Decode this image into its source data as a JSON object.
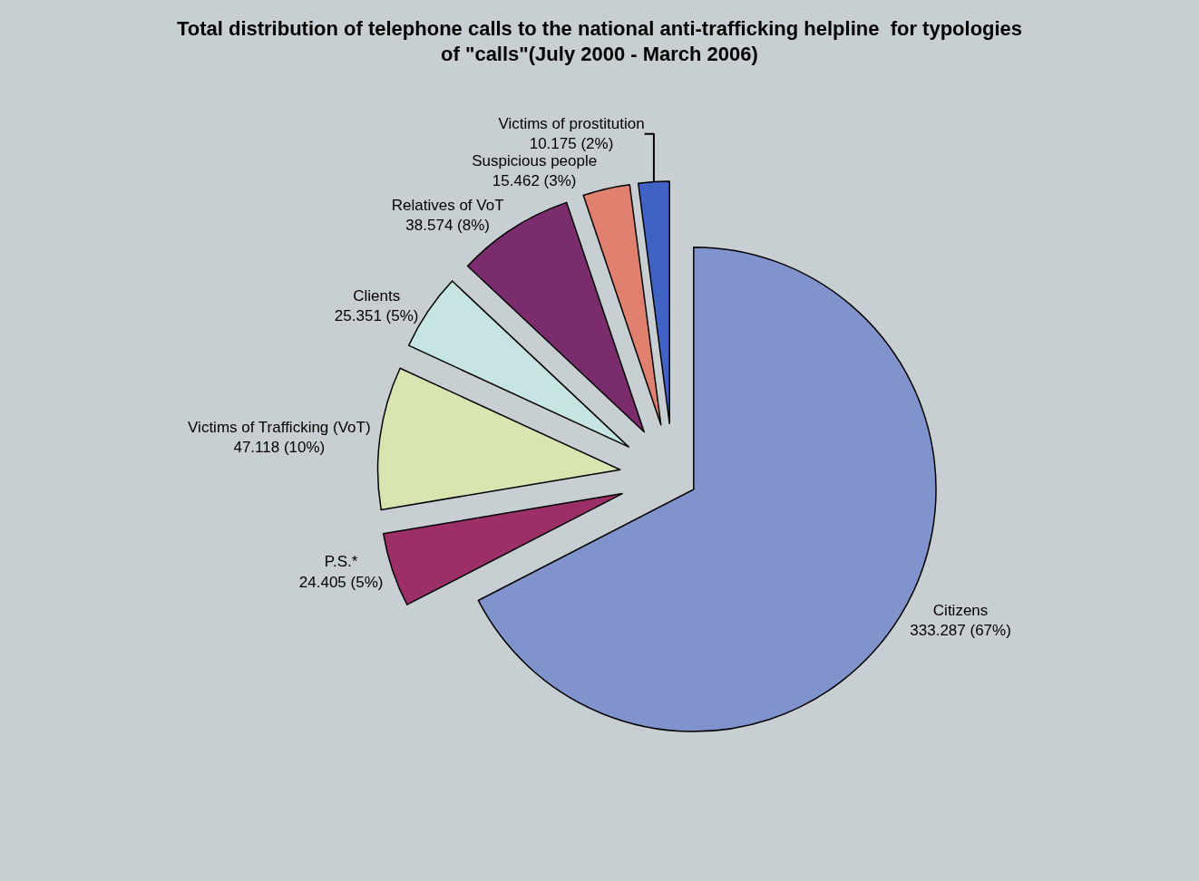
{
  "chart_data": {
    "type": "pie",
    "title": "Total distribution of telephone calls to the national anti-trafficking helpline  for typologies of \"calls\"(July 2000 - March 2006)",
    "categories": [
      "Citizens",
      "P.S.*",
      "Victims of Trafficking (VoT)",
      "Clients",
      "Relatives of VoT",
      "Suspicious people",
      "Victims of prostitution"
    ],
    "values": [
      333287,
      24405,
      47118,
      25351,
      38574,
      15462,
      10175
    ],
    "value_labels": [
      "333.287 (67%)",
      "24.405 (5%)",
      "47.118 (10%)",
      "25.351 (5%)",
      "38.574 (8%)",
      "15.462 (3%)",
      "10.175 (2%)"
    ],
    "colors": [
      "#8093cc",
      "#9c2f68",
      "#d9e5b0",
      "#c6e4e1",
      "#7a2c6c",
      "#e0806e",
      "#3f62c4"
    ],
    "legend": false
  }
}
